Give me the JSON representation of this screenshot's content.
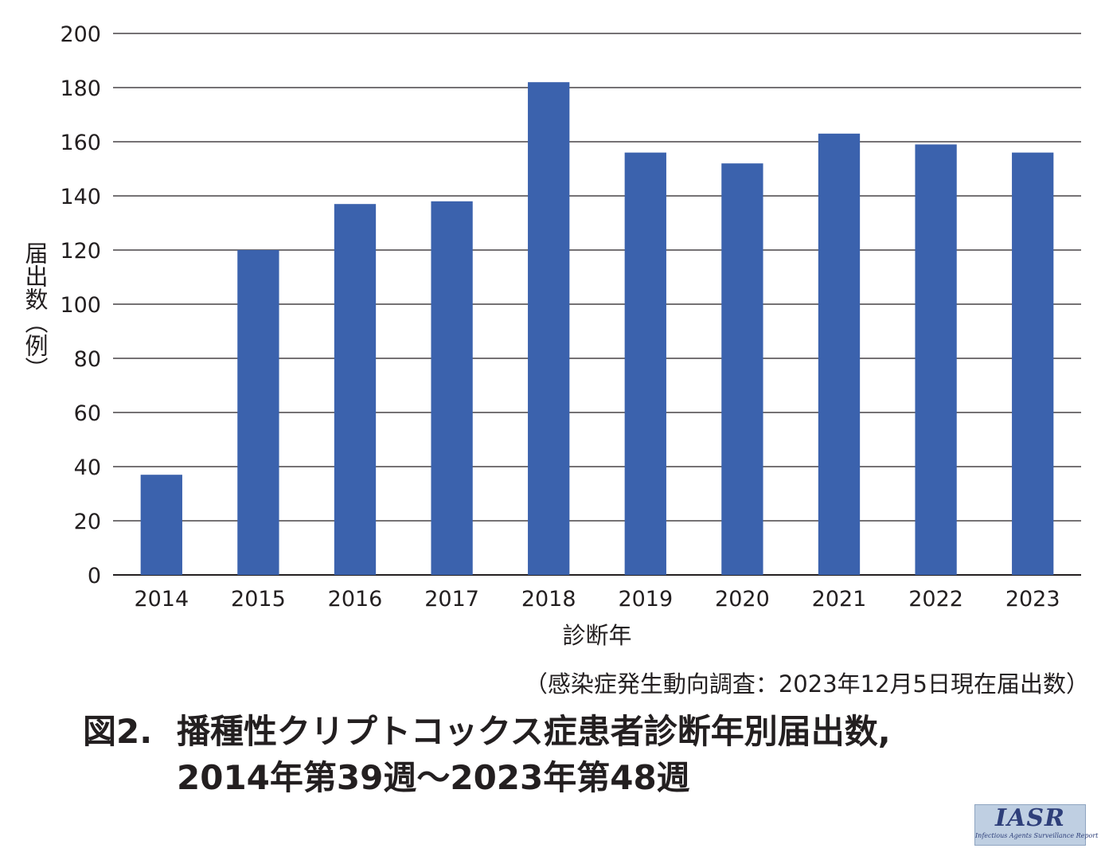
{
  "chart_data": {
    "type": "bar",
    "categories": [
      "2014",
      "2015",
      "2016",
      "2017",
      "2018",
      "2019",
      "2020",
      "2021",
      "2022",
      "2023"
    ],
    "values": [
      37,
      120,
      137,
      138,
      182,
      156,
      152,
      163,
      159,
      156
    ],
    "ylim": [
      0,
      200
    ],
    "yticks": [
      "0",
      "20",
      "40",
      "60",
      "80",
      "100",
      "120",
      "140",
      "160",
      "180",
      "200"
    ],
    "ylabel": "届出数（例）",
    "xlabel": "診断年",
    "grid": true,
    "bar_color": "#3b62ad"
  },
  "source_note": "（感染症発生動向調査：2023年12月5日現在届出数）",
  "figure_caption": {
    "number": "図2.",
    "line1": "播種性クリプトコックス症患者診断年別届出数,",
    "line2": "2014年第39週～2023年第48週"
  },
  "logo": {
    "text": "IASR",
    "subtext": "Infectious Agents Surveillance Report"
  }
}
